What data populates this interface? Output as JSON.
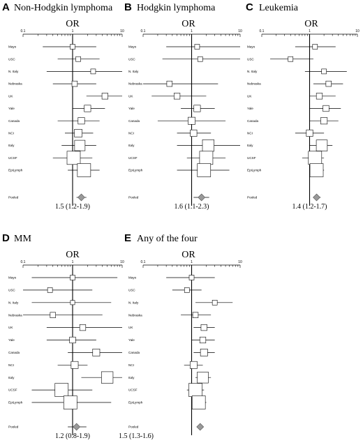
{
  "figure": {
    "studies": [
      "Mayo",
      "USC",
      "N. Italy",
      "Nebraska",
      "UK",
      "Yale",
      "Canada",
      "NCI",
      "Italy",
      "UCSF",
      "EpiLymph",
      "Pooled"
    ],
    "axis_title": "OR",
    "tick_labels": [
      "0.1",
      "1",
      "10"
    ],
    "colors": {
      "box_fill": "#ffffff",
      "diamond_fill": "#999999",
      "line": "#000000"
    }
  },
  "chart_data": [
    {
      "type": "forest",
      "letter": "A",
      "title": "Non-Hodgkin lymphoma",
      "xlabel": "OR",
      "xscale": "log",
      "xlim": [
        0.1,
        10
      ],
      "summary": "1.5 (1.2-1.9)",
      "rows": [
        {
          "study": "Mayo",
          "or": 1.0,
          "lo": 0.25,
          "hi": 3.0,
          "weight": 0.25
        },
        {
          "study": "USC",
          "or": 1.3,
          "lo": 0.5,
          "hi": 3.5,
          "weight": 0.25
        },
        {
          "study": "N. Italy",
          "or": 2.6,
          "lo": 0.3,
          "hi": 10,
          "weight": 0.25
        },
        {
          "study": "Nebraska",
          "or": 1.1,
          "lo": 0.4,
          "hi": 3.0,
          "weight": 0.3
        },
        {
          "study": "UK",
          "or": 4.5,
          "lo": 1.9,
          "hi": 10,
          "weight": 0.35
        },
        {
          "study": "Yale",
          "or": 2.0,
          "lo": 1.0,
          "hi": 4.5,
          "weight": 0.4
        },
        {
          "study": "Canada",
          "or": 1.5,
          "lo": 0.5,
          "hi": 3.5,
          "weight": 0.4
        },
        {
          "study": "NCI",
          "or": 1.3,
          "lo": 0.7,
          "hi": 2.6,
          "weight": 0.5
        },
        {
          "study": "Italy",
          "or": 1.4,
          "lo": 0.6,
          "hi": 3.0,
          "weight": 0.75
        },
        {
          "study": "UCSF",
          "or": 1.05,
          "lo": 0.4,
          "hi": 2.5,
          "weight": 1.0
        },
        {
          "study": "EpiLymph",
          "or": 1.7,
          "lo": 0.8,
          "hi": 3.5,
          "weight": 1.0
        }
      ],
      "pooled": {
        "or": 1.5,
        "lo": 1.2,
        "hi": 1.9
      }
    },
    {
      "type": "forest",
      "letter": "B",
      "title": "Hodgkin lymphoma",
      "xlabel": "OR",
      "xscale": "log",
      "xlim": [
        0.1,
        10
      ],
      "summary": "1.6 (1.1-2.3)",
      "rows": [
        {
          "study": "Mayo",
          "or": 1.3,
          "lo": 0.3,
          "hi": 10,
          "weight": 0.25
        },
        {
          "study": "USC",
          "or": 1.5,
          "lo": 0.25,
          "hi": 10,
          "weight": 0.25
        },
        {
          "study": "N. Italy",
          "or": null,
          "lo": null,
          "hi": null,
          "weight": 0
        },
        {
          "study": "Nebraska",
          "or": 0.35,
          "lo": 0.1,
          "hi": 3.5,
          "weight": 0.3
        },
        {
          "study": "UK",
          "or": 0.5,
          "lo": 0.15,
          "hi": 2.0,
          "weight": 0.35
        },
        {
          "study": "Yale",
          "or": 1.3,
          "lo": 0.6,
          "hi": 3.0,
          "weight": 0.4
        },
        {
          "study": "Canada",
          "or": 1.0,
          "lo": 0.2,
          "hi": 5.0,
          "weight": 0.45
        },
        {
          "study": "NCI",
          "or": 1.1,
          "lo": 0.5,
          "hi": 2.5,
          "weight": 0.4
        },
        {
          "study": "Italy",
          "or": 2.2,
          "lo": 0.5,
          "hi": 10,
          "weight": 0.85
        },
        {
          "study": "UCSF",
          "or": 2.0,
          "lo": 0.8,
          "hi": 5.0,
          "weight": 1.0
        },
        {
          "study": "EpiLymph",
          "or": 1.8,
          "lo": 0.5,
          "hi": 6.0,
          "weight": 1.0
        }
      ],
      "pooled": {
        "or": 1.6,
        "lo": 1.1,
        "hi": 2.3
      }
    },
    {
      "type": "forest",
      "letter": "C",
      "title": "Leukemia",
      "xlabel": "OR",
      "xscale": "log",
      "xlim": [
        0.1,
        10
      ],
      "summary": "1.4 (1.2-1.7)",
      "rows": [
        {
          "study": "Mayo",
          "or": 1.3,
          "lo": 0.5,
          "hi": 3.5,
          "weight": 0.25
        },
        {
          "study": "USC",
          "or": 0.4,
          "lo": 0.15,
          "hi": 1.2,
          "weight": 0.25
        },
        {
          "study": "N. Italy",
          "or": 2.0,
          "lo": 0.8,
          "hi": 6.0,
          "weight": 0.25
        },
        {
          "study": "Nebraska",
          "or": 2.5,
          "lo": 1.2,
          "hi": 5.0,
          "weight": 0.3
        },
        {
          "study": "UK",
          "or": 1.6,
          "lo": 1.0,
          "hi": 3.5,
          "weight": 0.35
        },
        {
          "study": "Yale",
          "or": 2.2,
          "lo": 1.0,
          "hi": 4.5,
          "weight": 0.35
        },
        {
          "study": "Canada",
          "or": 2.0,
          "lo": 1.0,
          "hi": 4.0,
          "weight": 0.4
        },
        {
          "study": "NCI",
          "or": 1.0,
          "lo": 0.5,
          "hi": 2.0,
          "weight": 0.4
        },
        {
          "study": "Italy",
          "or": 1.8,
          "lo": 1.0,
          "hi": 3.0,
          "weight": 0.8
        },
        {
          "study": "UCSF",
          "or": 1.3,
          "lo": 0.7,
          "hi": 2.0,
          "weight": 1.0
        },
        {
          "study": "EpiLymph",
          "or": 1.4,
          "lo": 1.0,
          "hi": 2.0,
          "weight": 1.0
        }
      ],
      "pooled": {
        "or": 1.4,
        "lo": 1.2,
        "hi": 1.7
      }
    },
    {
      "type": "forest",
      "letter": "D",
      "title": "MM",
      "xlabel": "OR",
      "xscale": "log",
      "xlim": [
        0.1,
        10
      ],
      "summary": "1.2 (0.8-1.9)",
      "rows": [
        {
          "study": "Mayo",
          "or": 1.0,
          "lo": 0.15,
          "hi": 8.0,
          "weight": 0.25
        },
        {
          "study": "USC",
          "or": 0.35,
          "lo": 0.1,
          "hi": 2.5,
          "weight": 0.25
        },
        {
          "study": "N. Italy",
          "or": 1.0,
          "lo": 0.15,
          "hi": 6.0,
          "weight": 0.2
        },
        {
          "study": "Nebraska",
          "or": 0.4,
          "lo": 0.1,
          "hi": 4.0,
          "weight": 0.3
        },
        {
          "study": "UK",
          "or": 1.6,
          "lo": 0.3,
          "hi": 10,
          "weight": 0.35
        },
        {
          "study": "Yale",
          "or": 1.0,
          "lo": 0.3,
          "hi": 3.0,
          "weight": 0.35
        },
        {
          "study": "Canada",
          "or": 3.0,
          "lo": 0.8,
          "hi": 10,
          "weight": 0.45
        },
        {
          "study": "NCI",
          "or": 1.1,
          "lo": 0.5,
          "hi": 2.0,
          "weight": 0.45
        },
        {
          "study": "Italy",
          "or": 5.0,
          "lo": 1.5,
          "hi": 10,
          "weight": 0.85
        },
        {
          "study": "UCSF",
          "or": 0.6,
          "lo": 0.15,
          "hi": 2.5,
          "weight": 1.0
        },
        {
          "study": "EpiLymph",
          "or": 0.9,
          "lo": 0.15,
          "hi": 6.0,
          "weight": 1.0
        }
      ],
      "pooled": {
        "or": 1.2,
        "lo": 0.8,
        "hi": 1.9
      }
    },
    {
      "type": "forest",
      "letter": "E",
      "title": "Any of the four",
      "xlabel": "OR",
      "xscale": "log",
      "xlim": [
        0.1,
        10
      ],
      "summary": "1.5 (1.3-1.6)",
      "rows": [
        {
          "study": "Mayo",
          "or": 1.0,
          "lo": 0.3,
          "hi": 3.0,
          "weight": 0.25
        },
        {
          "study": "USC",
          "or": 0.8,
          "lo": 0.4,
          "hi": 1.6,
          "weight": 0.25
        },
        {
          "study": "N. Italy",
          "or": 3.0,
          "lo": 1.2,
          "hi": 7.0,
          "weight": 0.25
        },
        {
          "study": "Nebraska",
          "or": 1.2,
          "lo": 0.6,
          "hi": 2.5,
          "weight": 0.3
        },
        {
          "study": "UK",
          "or": 1.8,
          "lo": 1.1,
          "hi": 3.0,
          "weight": 0.35
        },
        {
          "study": "Yale",
          "or": 1.7,
          "lo": 1.0,
          "hi": 3.0,
          "weight": 0.35
        },
        {
          "study": "Canada",
          "or": 1.8,
          "lo": 1.1,
          "hi": 3.0,
          "weight": 0.45
        },
        {
          "study": "NCI",
          "or": 1.1,
          "lo": 0.7,
          "hi": 1.7,
          "weight": 0.45
        },
        {
          "study": "Italy",
          "or": 1.7,
          "lo": 1.2,
          "hi": 2.5,
          "weight": 0.8
        },
        {
          "study": "UCSF",
          "or": 1.2,
          "lo": 0.8,
          "hi": 1.8,
          "weight": 1.0
        },
        {
          "study": "EpiLymph",
          "or": 1.4,
          "lo": 1.0,
          "hi": 2.0,
          "weight": 1.0
        }
      ],
      "pooled": {
        "or": 1.5,
        "lo": 1.3,
        "hi": 1.6
      }
    }
  ]
}
